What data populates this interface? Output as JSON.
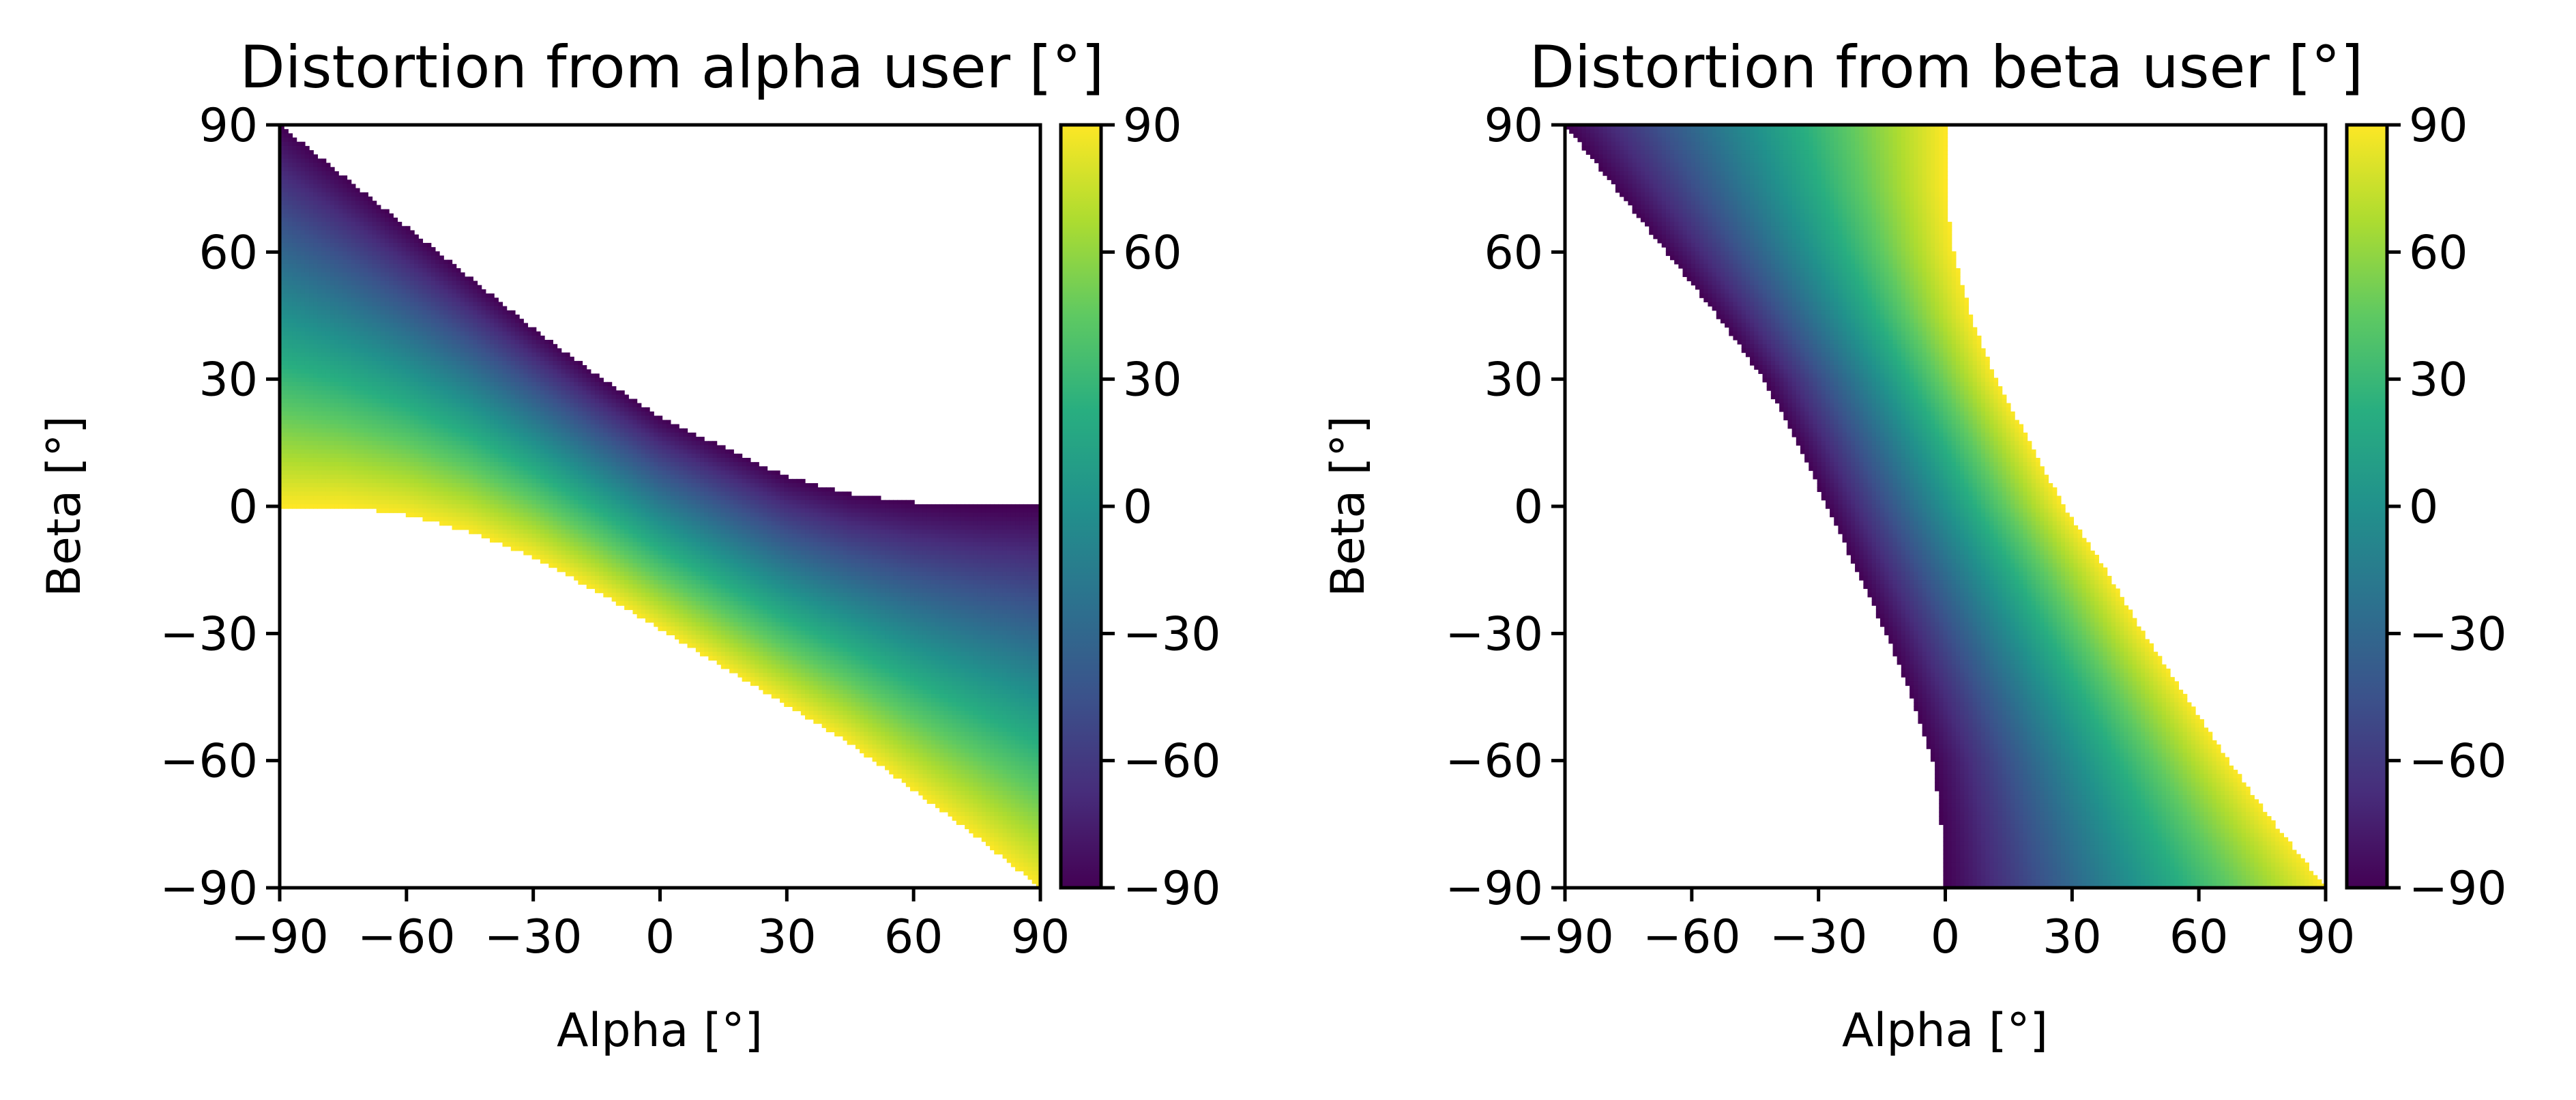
{
  "chart_data": [
    {
      "type": "heatmap",
      "title": "Distortion from alpha user [°]",
      "xlabel": "Alpha [°]",
      "ylabel": "Beta [°]",
      "xlim": [
        -90,
        90
      ],
      "ylim": [
        -90,
        90
      ],
      "xticks": [
        -90,
        -60,
        -30,
        0,
        30,
        60,
        90
      ],
      "yticks": [
        -90,
        -60,
        -30,
        0,
        30,
        60,
        90
      ],
      "xtick_labels": [
        "−90",
        "−60",
        "−30",
        "0",
        "30",
        "60",
        "90"
      ],
      "ytick_labels": [
        "−90",
        "−60",
        "−30",
        "0",
        "30",
        "60",
        "90"
      ],
      "colorbar": {
        "range": [
          -90,
          90
        ],
        "ticks": [
          -90,
          -60,
          -30,
          0,
          30,
          60,
          90
        ],
        "tick_labels": [
          "−90",
          "−60",
          "−30",
          "0",
          "30",
          "60",
          "90"
        ],
        "colormap": "viridis"
      },
      "region": {
        "alpha": [
          -90,
          -75,
          -60,
          -45,
          -30,
          -15,
          0,
          15,
          30,
          45,
          60,
          75,
          90
        ],
        "beta_max": [
          90,
          78,
          66,
          54,
          42,
          31,
          21,
          14,
          7,
          3,
          1,
          0,
          0
        ],
        "beta_min": [
          0,
          0,
          -2,
          -6,
          -12,
          -20,
          -29,
          -38,
          -47,
          -56,
          -67,
          -78,
          -90
        ]
      },
      "value_rule": "distortion value rises from -90 (dark purple) at the upper boundary to +90 (yellow) at the lower boundary"
    },
    {
      "type": "heatmap",
      "title": "Distortion from beta user [°]",
      "xlabel": "Alpha [°]",
      "ylabel": "Beta [°]",
      "xlim": [
        -90,
        90
      ],
      "ylim": [
        -90,
        90
      ],
      "xticks": [
        -90,
        -60,
        -30,
        0,
        30,
        60,
        90
      ],
      "yticks": [
        -90,
        -60,
        -30,
        0,
        30,
        60,
        90
      ],
      "xtick_labels": [
        "−90",
        "−60",
        "−30",
        "0",
        "30",
        "60",
        "90"
      ],
      "ytick_labels": [
        "−90",
        "−60",
        "−30",
        "0",
        "30",
        "60",
        "90"
      ],
      "colorbar": {
        "range": [
          -90,
          90
        ],
        "ticks": [
          -90,
          -60,
          -30,
          0,
          30,
          60,
          90
        ],
        "tick_labels": [
          "−90",
          "−60",
          "−30",
          "0",
          "30",
          "60",
          "90"
        ],
        "colormap": "viridis"
      },
      "region": {
        "beta": [
          90,
          75,
          60,
          45,
          30,
          15,
          0,
          -15,
          -30,
          -45,
          -60,
          -75,
          -90
        ],
        "alpha_min": [
          -90,
          -78,
          -66,
          -54,
          -43,
          -35,
          -28,
          -21,
          -14,
          -8,
          -3,
          -1,
          0
        ],
        "alpha_max": [
          0,
          0,
          2,
          6,
          12,
          20,
          28,
          38,
          47,
          57,
          67,
          78,
          90
        ]
      },
      "value_rule": "distortion value rises from -90 (dark purple) at the left boundary to +90 (yellow) at the right boundary"
    }
  ]
}
